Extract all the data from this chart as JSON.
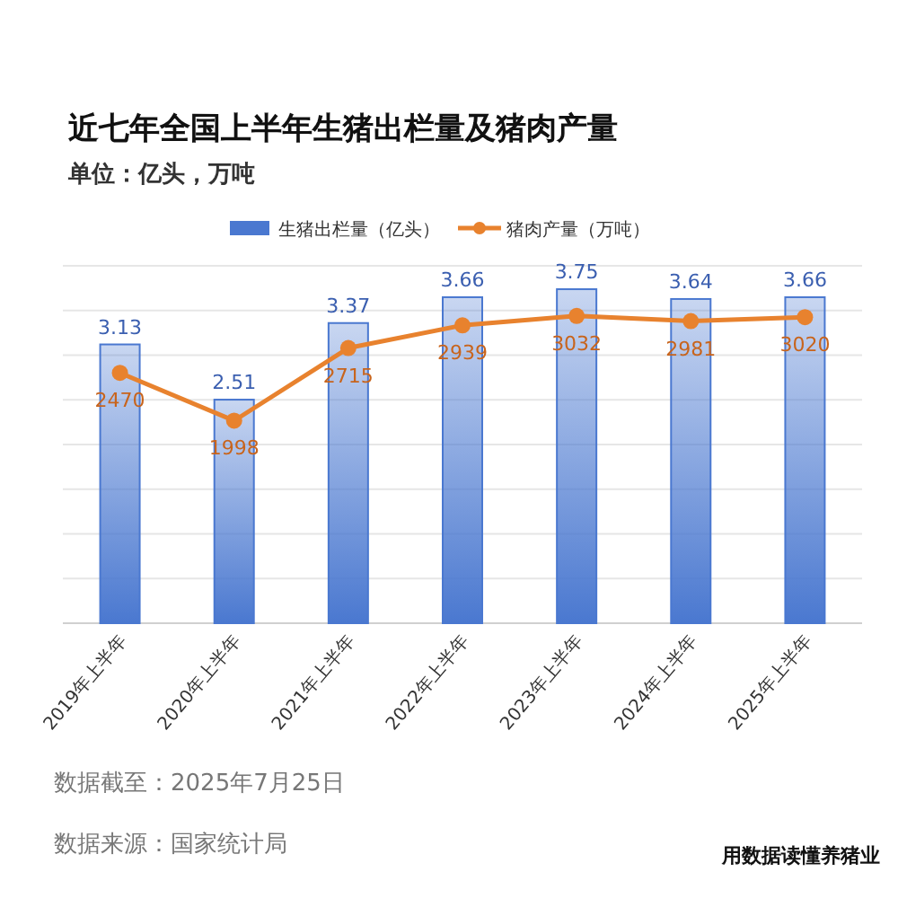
{
  "chart_data": {
    "type": "bar",
    "title": "近七年全国上半年生猪出栏量及猪肉产量",
    "subtitle": "单位：亿头，万吨",
    "categories": [
      "2019年上半年",
      "2020年上半年",
      "2021年上半年",
      "2022年上半年",
      "2023年上半年",
      "2024年上半年",
      "2025年上半年"
    ],
    "series": [
      {
        "name": "生猪出栏量（亿头）",
        "color": "#4a78d0",
        "values": [
          3.13,
          2.51,
          3.37,
          3.66,
          3.75,
          3.64,
          3.66
        ]
      },
      {
        "name": "猪肉产量（万吨）",
        "type": "line",
        "axis": "y2",
        "color": "#e8822e",
        "values": [
          2470,
          1998,
          2715,
          2939,
          3032,
          2981,
          3020
        ]
      }
    ],
    "data_labels": true,
    "grid": "y",
    "legend": "top",
    "marker": "circle",
    "line_style": "solid",
    "annotations": [
      "数据截至：2025年7月25日",
      "数据来源：国家统计局",
      "用数据读懂养猪业"
    ]
  }
}
